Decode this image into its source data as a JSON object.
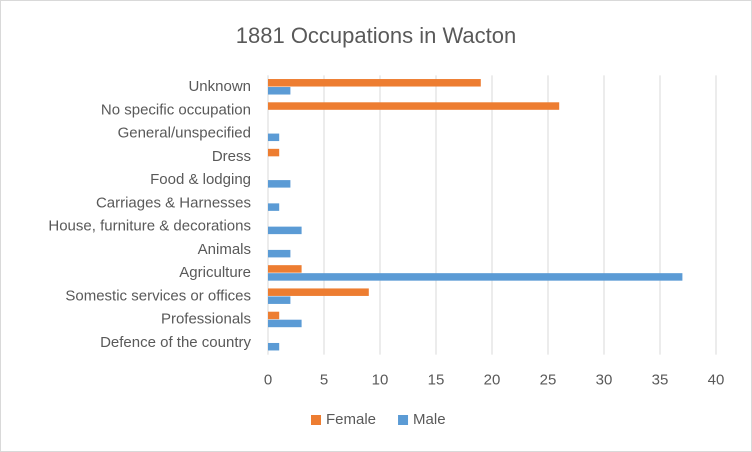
{
  "chart_data": {
    "type": "bar",
    "orientation": "horizontal",
    "title": "1881 Occupations in Wacton",
    "categories": [
      "Unknown",
      "No specific occupation",
      "General/unspecified",
      "Dress",
      "Food & lodging",
      "Carriages & Harnesses",
      "House, furniture & decorations",
      "Animals",
      "Agriculture",
      "Somestic services or offices",
      "Professionals",
      "Defence of the country"
    ],
    "series": [
      {
        "name": "Female",
        "color": "#ed7d31",
        "values": [
          19,
          26,
          0,
          1,
          0,
          0,
          0,
          0,
          3,
          9,
          1,
          0
        ]
      },
      {
        "name": "Male",
        "color": "#5b9bd5",
        "values": [
          2,
          0,
          1,
          0,
          2,
          1,
          3,
          2,
          37,
          2,
          3,
          1
        ]
      }
    ],
    "xlim": [
      0,
      40
    ],
    "xticks": [
      0,
      5,
      10,
      15,
      20,
      25,
      30,
      35,
      40
    ],
    "grid": true,
    "legend": "bottom"
  }
}
